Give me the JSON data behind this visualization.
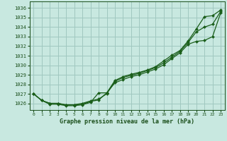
{
  "title": "Graphe pression niveau de la mer (hPa)",
  "bg_color": "#c8e8e0",
  "grid_color": "#a0c8c0",
  "line_color": "#1a5e1a",
  "marker_color": "#1a5e1a",
  "text_color": "#1a4e1a",
  "xlim": [
    -0.5,
    23.5
  ],
  "ylim": [
    1025.3,
    1036.7
  ],
  "yticks": [
    1026,
    1027,
    1028,
    1029,
    1030,
    1031,
    1032,
    1033,
    1034,
    1035,
    1036
  ],
  "xticks": [
    0,
    1,
    2,
    3,
    4,
    5,
    6,
    7,
    8,
    9,
    10,
    11,
    12,
    13,
    14,
    15,
    16,
    17,
    18,
    19,
    20,
    21,
    22,
    23
  ],
  "line1_x": [
    0,
    1,
    2,
    3,
    4,
    5,
    6,
    7,
    8,
    9,
    10,
    11,
    12,
    13,
    14,
    15,
    16,
    17,
    18,
    19,
    20,
    21,
    22,
    23
  ],
  "line1_y": [
    1027.0,
    1026.3,
    1026.0,
    1026.0,
    1025.8,
    1025.85,
    1025.9,
    1026.2,
    1026.35,
    1027.1,
    1028.4,
    1028.8,
    1029.05,
    1029.25,
    1029.5,
    1029.85,
    1030.45,
    1031.05,
    1031.55,
    1032.55,
    1033.8,
    1035.1,
    1035.2,
    1035.8
  ],
  "line2_x": [
    0,
    1,
    2,
    3,
    4,
    5,
    6,
    7,
    8,
    9,
    10,
    11,
    12,
    13,
    14,
    15,
    16,
    17,
    18,
    19,
    20,
    21,
    22,
    23
  ],
  "line2_y": [
    1027.0,
    1026.3,
    1026.0,
    1026.0,
    1025.85,
    1025.85,
    1026.0,
    1026.25,
    1026.45,
    1027.0,
    1028.3,
    1028.7,
    1028.95,
    1029.15,
    1029.45,
    1029.75,
    1030.25,
    1030.85,
    1031.45,
    1032.4,
    1033.5,
    1034.0,
    1034.3,
    1035.65
  ],
  "line3_x": [
    0,
    1,
    2,
    3,
    4,
    5,
    6,
    7,
    8,
    9,
    10,
    11,
    12,
    13,
    14,
    15,
    16,
    17,
    18,
    19,
    20,
    21,
    22,
    23
  ],
  "line3_y": [
    1027.0,
    1026.3,
    1025.9,
    1025.9,
    1025.75,
    1025.75,
    1025.85,
    1026.1,
    1027.1,
    1027.1,
    1028.15,
    1028.5,
    1028.8,
    1029.0,
    1029.3,
    1029.6,
    1030.05,
    1030.7,
    1031.3,
    1032.2,
    1032.5,
    1032.6,
    1033.0,
    1035.5
  ]
}
